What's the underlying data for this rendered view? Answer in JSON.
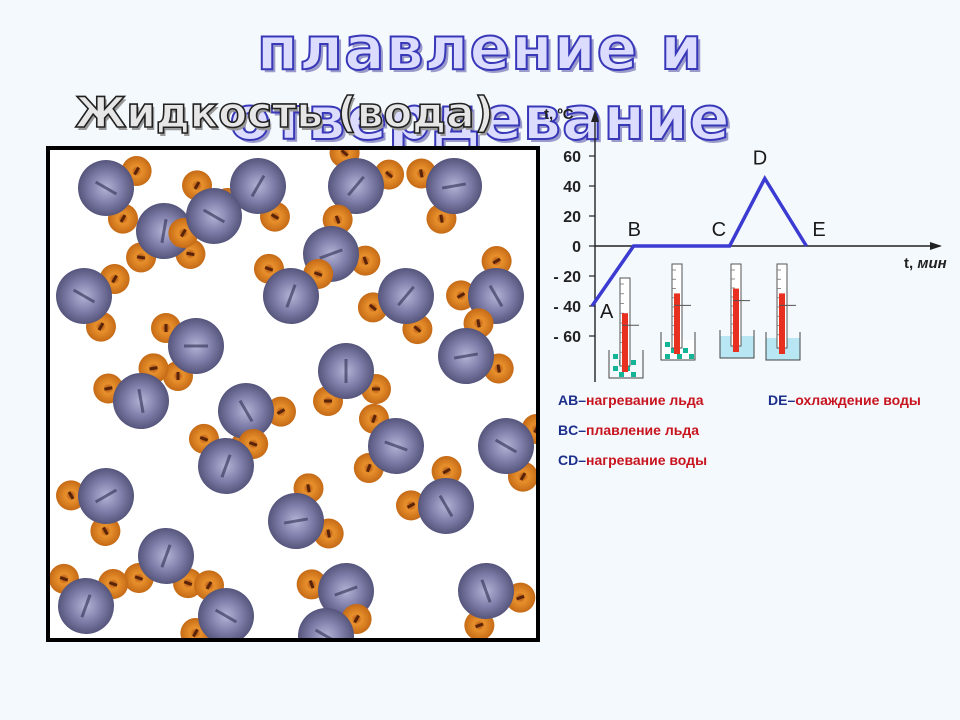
{
  "title": "плавление и отвердевание",
  "subtitle": "Жидкость (вода)",
  "colors": {
    "water_molecule": "#6f6f9a",
    "hydrogen": "#e38a2a",
    "line": "#3b3bd2",
    "mercury": "#e83020",
    "ice": "#14b596",
    "water": "#b9e6f3"
  },
  "chart_data": {
    "type": "line",
    "ylabel": "t, ºC",
    "xlabel_prefix": "t,",
    "xlabel_unit": "мин",
    "yticks": [
      "60",
      "40",
      "20",
      "0",
      "- 20",
      "- 40",
      "- 60"
    ],
    "ytick_values": [
      60,
      40,
      20,
      0,
      -20,
      -40,
      -60
    ],
    "ylim": [
      -65,
      75
    ],
    "xlim": [
      0,
      10
    ],
    "points": [
      {
        "label": "A",
        "x": 0,
        "y": -40
      },
      {
        "label": "B",
        "x": 1.3,
        "y": 0
      },
      {
        "label": "C",
        "x": 4.3,
        "y": 0
      },
      {
        "label": "D",
        "x": 5.4,
        "y": 45
      },
      {
        "label": "E",
        "x": 6.7,
        "y": 0
      }
    ],
    "thermometers": [
      {
        "state": "ice",
        "fill": 0.6
      },
      {
        "state": "ice-water",
        "fill": 0.65
      },
      {
        "state": "water",
        "fill": 0.7
      },
      {
        "state": "water",
        "fill": 0.65
      }
    ]
  },
  "legend": [
    {
      "code": "AB",
      "dash": "–",
      "text": "нагревание льда"
    },
    {
      "code": "BC",
      "dash": "–",
      "text": "плавление льда"
    },
    {
      "code": "CD",
      "dash": "–",
      "text": "нагревание воды"
    },
    {
      "code": "DE",
      "dash": "–",
      "text": "охлаждение воды"
    }
  ]
}
